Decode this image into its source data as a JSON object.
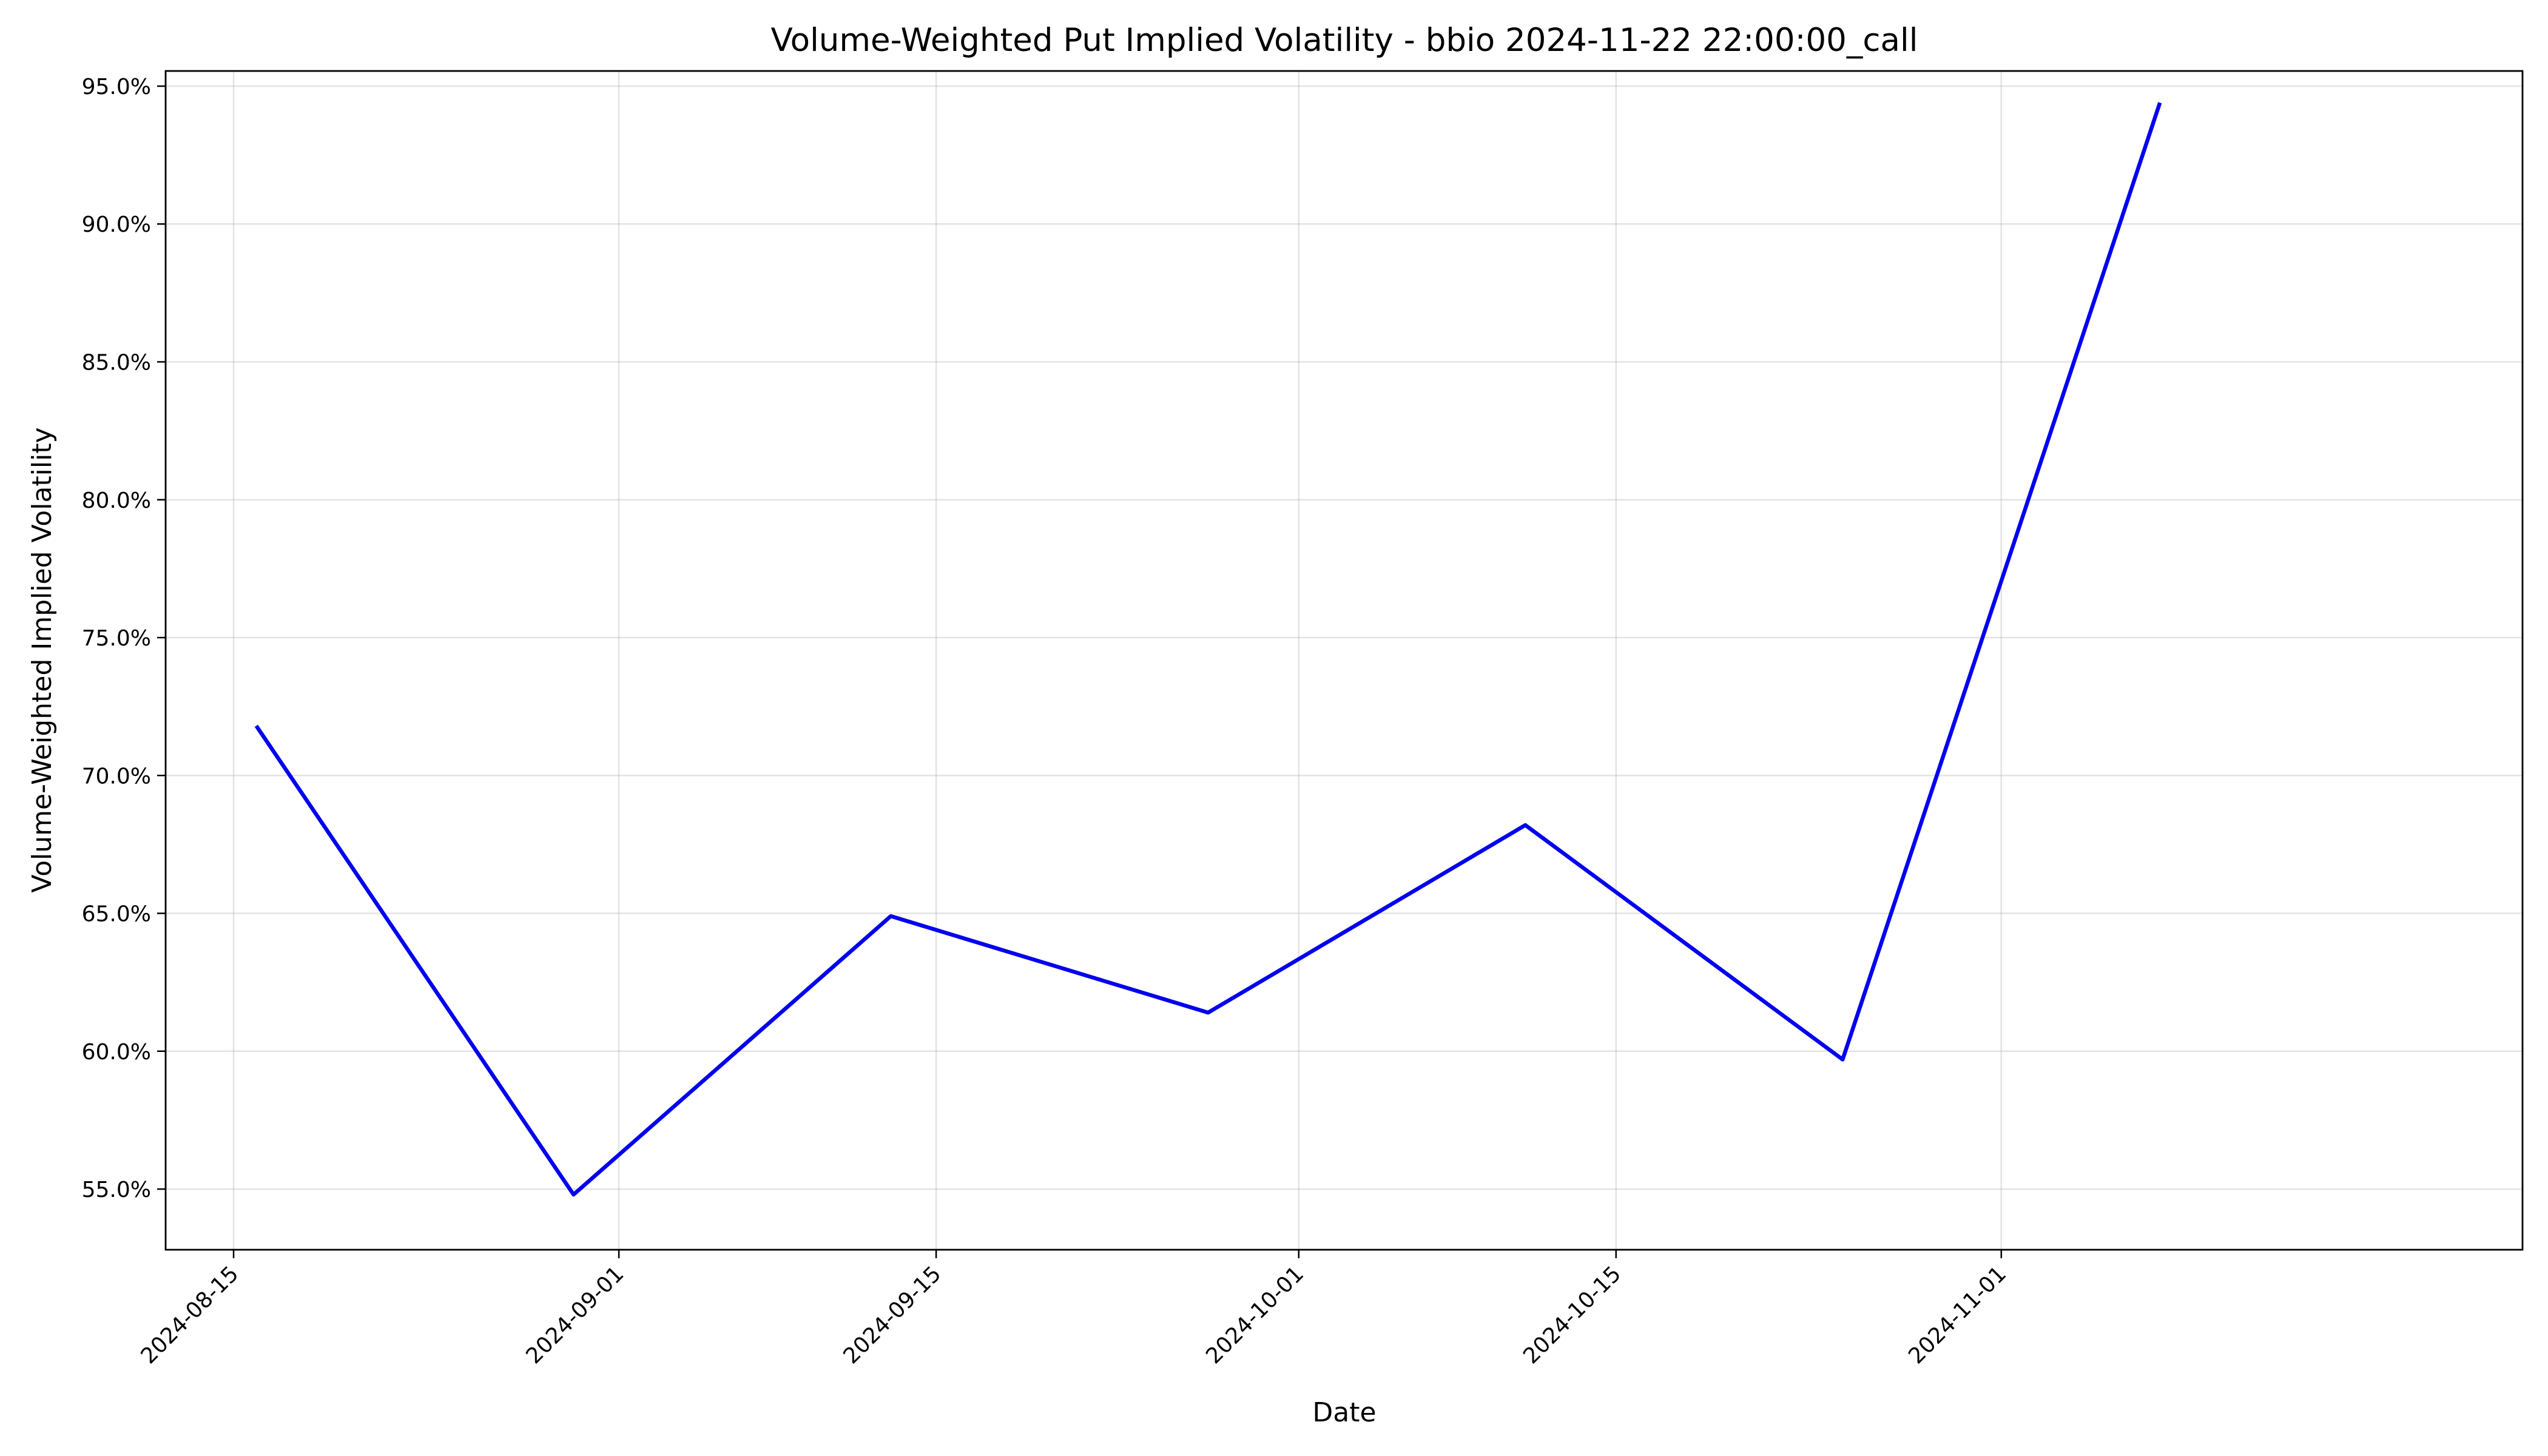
{
  "chart_data": {
    "type": "line",
    "title": "Volume-Weighted Put Implied Volatility - bbio 2024-11-22 22:00:00_call",
    "xlabel": "Date",
    "ylabel": "Volume-Weighted Implied Volatility",
    "x_ticks": [
      "2024-08-15",
      "2024-09-01",
      "2024-09-15",
      "2024-10-01",
      "2024-10-15",
      "2024-11-01"
    ],
    "y_ticks": [
      0.55,
      0.6,
      0.65,
      0.7,
      0.75,
      0.8,
      0.85,
      0.9,
      0.95
    ],
    "y_tick_labels": [
      "55.0%",
      "60.0%",
      "65.0%",
      "70.0%",
      "75.0%",
      "80.0%",
      "85.0%",
      "90.0%",
      "95.0%"
    ],
    "xlim": [
      "2024-08-12",
      "2024-11-24"
    ],
    "ylim": [
      0.528,
      0.9555
    ],
    "grid": true,
    "legend": "none",
    "series": [
      {
        "color": "#0000ee",
        "x": [
          "2024-08-16",
          "2024-08-30",
          "2024-09-13",
          "2024-09-27",
          "2024-10-11",
          "2024-10-25",
          "2024-11-08"
        ],
        "y": [
          0.718,
          0.548,
          0.649,
          0.614,
          0.682,
          0.597,
          0.944
        ]
      }
    ]
  }
}
